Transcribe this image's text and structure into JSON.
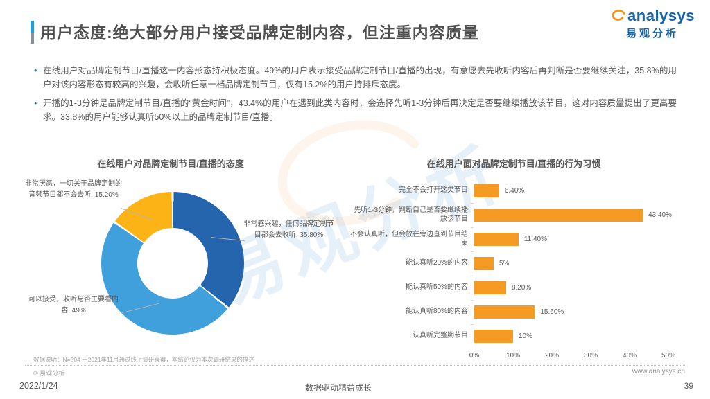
{
  "page": {
    "title": "用户态度:绝大部分用户接受品牌定制内容，但注重内容质量",
    "logo": {
      "brand": "analysys",
      "brand_cn": "易观分析"
    },
    "bullets": [
      "在线用户对品牌定制节目/直播这一内容形态持积极态度。49%的用户表示接受品牌定制节目/直播的出现，有意愿去先收听内容后再判断是否要继续关注，35.8%的用户对该内容形态有较高的兴趣，会收听任意一档品牌定制节目，仅有15.2%的用户持排斥态度。",
      "开播的1-3分钟是品牌定制节目/直播的“黄金时间”，43.4%的用户在遇到此类内容时，会选择先听1-3分钟后再决定是否要继续播放该节目，这对内容质量提出了更高要求。33.8%的用户能够认真听50%以上的品牌定制节目/直播。"
    ],
    "footnote": "数据说明：N=304 于2021年11月通过线上调研获得，本结论仅为本次调研结果的描述",
    "copyright": "© 易观分析",
    "date": "2022/1/24",
    "slogan": "数据驱动精益成长",
    "website": "www.analysys.cn",
    "page_number": "39",
    "watermark": "易观分析"
  },
  "chart_data": [
    {
      "type": "pie",
      "donut": true,
      "title": "在线用户对品牌定制节目/直播的态度",
      "start_angle_deg": 0,
      "slices": [
        {
          "label": "非常感兴趣，任何品牌定制节目都会去收听",
          "value": 35.8,
          "display": "35.80%",
          "color": "#2565ad"
        },
        {
          "label": "可以接受，收听与否主要看内容",
          "value": 49,
          "display": "49%",
          "color": "#3fa0dc"
        },
        {
          "label": "非常厌恶，一切关于品牌定制的音频节目都不会去听",
          "value": 15.2,
          "display": "15.20%",
          "color": "#fcb315"
        }
      ]
    },
    {
      "type": "bar",
      "orientation": "horizontal",
      "title": "在线用户面对品牌定制节目/直播的行为习惯",
      "categories": [
        "完全不会打开这类节目",
        "先听1-3分钟，判断自己是否要继续播放该节目",
        "不会认真听，但会放在旁边直到节目结束",
        "能认真听20%的内容",
        "能认真听50%的内容",
        "能认真听80%的内容",
        "认真听完整期节目"
      ],
      "values": [
        6.4,
        43.4,
        11.4,
        5,
        8.2,
        15.6,
        10
      ],
      "value_labels": [
        "6.40%",
        "43.40%",
        "11.40%",
        "5%",
        "8.20%",
        "15.60%",
        "10%"
      ],
      "xlim": [
        0,
        50
      ],
      "x_ticks": [
        "0%",
        "10%",
        "20%",
        "30%",
        "40%",
        "50%"
      ],
      "bar_color": "#f59a23",
      "grid": false,
      "legend": false
    }
  ]
}
